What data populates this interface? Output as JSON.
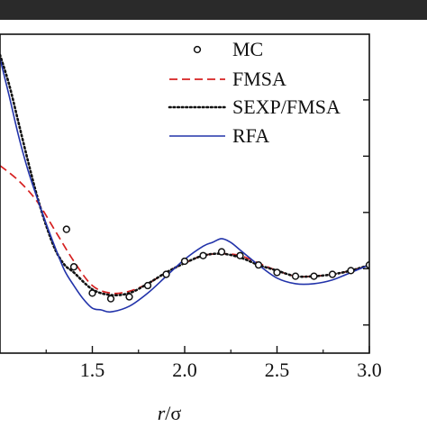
{
  "chart_data": {
    "type": "line",
    "xlabel_var": "r",
    "xlabel_unit": "/σ",
    "xlim": [
      1.0,
      3.0
    ],
    "ylim": [
      0.45,
      2.15
    ],
    "x_ticks": [
      "1.5",
      "2.0",
      "2.5",
      "3.0"
    ],
    "legend": [
      "MC",
      "FMSA",
      "SEXP/FMSA",
      "RFA"
    ],
    "colors": {
      "mc": "#111111",
      "fmsa": "#d62020",
      "sexp_fmsa": "#111111",
      "rfa": "#2233aa"
    },
    "series": [
      {
        "name": "MC",
        "style": "markers",
        "x": [
          1.36,
          1.4,
          1.5,
          1.6,
          1.7,
          1.8,
          1.9,
          2.0,
          2.1,
          2.2,
          2.3,
          2.4,
          2.5,
          2.6,
          2.7,
          2.8,
          2.9,
          3.0
        ],
        "y": [
          1.11,
          0.91,
          0.77,
          0.74,
          0.75,
          0.81,
          0.87,
          0.94,
          0.97,
          0.99,
          0.97,
          0.92,
          0.88,
          0.86,
          0.86,
          0.87,
          0.89,
          0.92
        ]
      },
      {
        "name": "FMSA",
        "style": "dashed",
        "x": [
          1.0,
          1.1,
          1.2,
          1.3,
          1.4,
          1.5,
          1.6,
          1.7,
          1.8,
          1.9,
          2.0,
          2.1,
          2.2,
          2.3,
          2.4,
          2.5,
          2.6,
          2.7,
          2.8,
          2.9,
          3.0
        ],
        "y": [
          1.45,
          1.37,
          1.26,
          1.1,
          0.94,
          0.81,
          0.77,
          0.78,
          0.82,
          0.88,
          0.93,
          0.97,
          0.98,
          0.97,
          0.93,
          0.89,
          0.86,
          0.86,
          0.87,
          0.89,
          0.92
        ]
      },
      {
        "name": "SEXP/FMSA",
        "style": "dotted",
        "x": [
          1.0,
          1.05,
          1.1,
          1.15,
          1.2,
          1.25,
          1.3,
          1.35,
          1.4,
          1.5,
          1.6,
          1.7,
          1.8,
          1.9,
          2.0,
          2.1,
          2.2,
          2.3,
          2.4,
          2.5,
          2.6,
          2.7,
          2.8,
          2.9,
          3.0
        ],
        "y": [
          2.04,
          1.88,
          1.68,
          1.48,
          1.29,
          1.13,
          1.0,
          0.92,
          0.88,
          0.79,
          0.76,
          0.77,
          0.82,
          0.88,
          0.93,
          0.97,
          0.98,
          0.96,
          0.92,
          0.89,
          0.86,
          0.86,
          0.87,
          0.89,
          0.92
        ]
      },
      {
        "name": "RFA",
        "style": "solid",
        "x": [
          1.0,
          1.05,
          1.1,
          1.15,
          1.2,
          1.25,
          1.3,
          1.35,
          1.4,
          1.45,
          1.5,
          1.55,
          1.6,
          1.7,
          1.8,
          1.9,
          2.0,
          2.1,
          2.15,
          2.2,
          2.25,
          2.3,
          2.4,
          2.5,
          2.6,
          2.7,
          2.8,
          2.9,
          3.0
        ],
        "y": [
          2.02,
          1.82,
          1.61,
          1.43,
          1.28,
          1.14,
          1.01,
          0.89,
          0.81,
          0.74,
          0.69,
          0.68,
          0.67,
          0.7,
          0.77,
          0.86,
          0.95,
          1.02,
          1.04,
          1.06,
          1.04,
          1.0,
          0.92,
          0.85,
          0.82,
          0.82,
          0.84,
          0.88,
          0.92
        ]
      }
    ]
  }
}
